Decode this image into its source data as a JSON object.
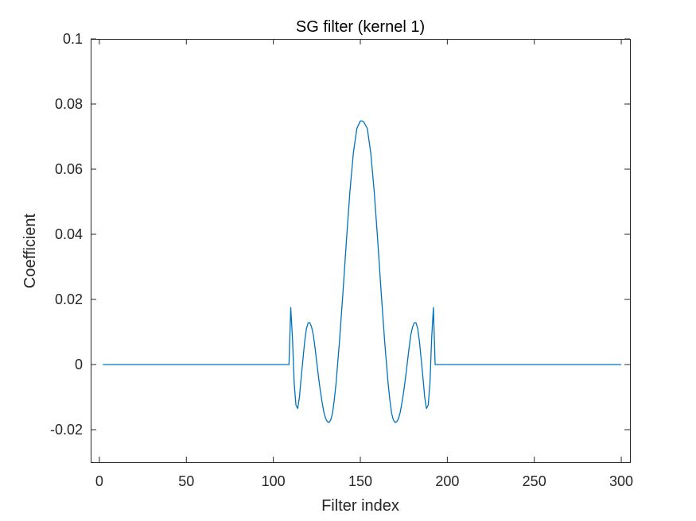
{
  "chart_data": {
    "type": "line",
    "title": "SG filter (kernel 1)",
    "xlabel": "Filter index",
    "ylabel": "Coefficient",
    "xlim": [
      -5,
      305
    ],
    "ylim": [
      -0.03,
      0.1
    ],
    "xticks": [
      0,
      50,
      100,
      150,
      200,
      250,
      300
    ],
    "xtick_labels": [
      "0",
      "50",
      "100",
      "150",
      "200",
      "250",
      "300"
    ],
    "yticks": [
      -0.02,
      0,
      0.02,
      0.04,
      0.06,
      0.08,
      0.1
    ],
    "ytick_labels": [
      "-0.02",
      "0",
      "0.02",
      "0.04",
      "0.06",
      "0.08",
      "0.1"
    ],
    "grid": false,
    "line_color": "#0072BD",
    "axis_color": "#262626",
    "series": [
      {
        "x": [
          2,
          109,
          110,
          111,
          112,
          113,
          114,
          115,
          116,
          118,
          119,
          120,
          121,
          122,
          123,
          124,
          125,
          126,
          127,
          128,
          129,
          130,
          131,
          132,
          133,
          134,
          135,
          136,
          138,
          140,
          142,
          144,
          146,
          148,
          150,
          151,
          152,
          154,
          156,
          158,
          160,
          162,
          164,
          166,
          167,
          168,
          169,
          170,
          171,
          172,
          173,
          174,
          175,
          176,
          177,
          178,
          179,
          180,
          181,
          182,
          183,
          184,
          186,
          187,
          188,
          189,
          190,
          191,
          192,
          193,
          300
        ],
        "y": [
          0,
          0,
          0.0175,
          0.008,
          -0.006,
          -0.0125,
          -0.0135,
          -0.01,
          -0.004,
          0.007,
          0.011,
          0.0128,
          0.0128,
          0.0115,
          0.009,
          0.005,
          0.0005,
          -0.004,
          -0.008,
          -0.0115,
          -0.0145,
          -0.0165,
          -0.0175,
          -0.0178,
          -0.017,
          -0.015,
          -0.011,
          -0.006,
          0.007,
          0.022,
          0.038,
          0.053,
          0.065,
          0.0725,
          0.0748,
          0.0748,
          0.0745,
          0.0725,
          0.065,
          0.053,
          0.038,
          0.022,
          0.007,
          -0.006,
          -0.011,
          -0.015,
          -0.017,
          -0.0178,
          -0.0175,
          -0.0165,
          -0.0145,
          -0.0115,
          -0.008,
          -0.004,
          0.0005,
          0.005,
          0.009,
          0.0115,
          0.0128,
          0.0128,
          0.011,
          0.007,
          -0.004,
          -0.01,
          -0.0135,
          -0.0125,
          -0.006,
          0.008,
          0.0175,
          0,
          0
        ]
      }
    ]
  }
}
